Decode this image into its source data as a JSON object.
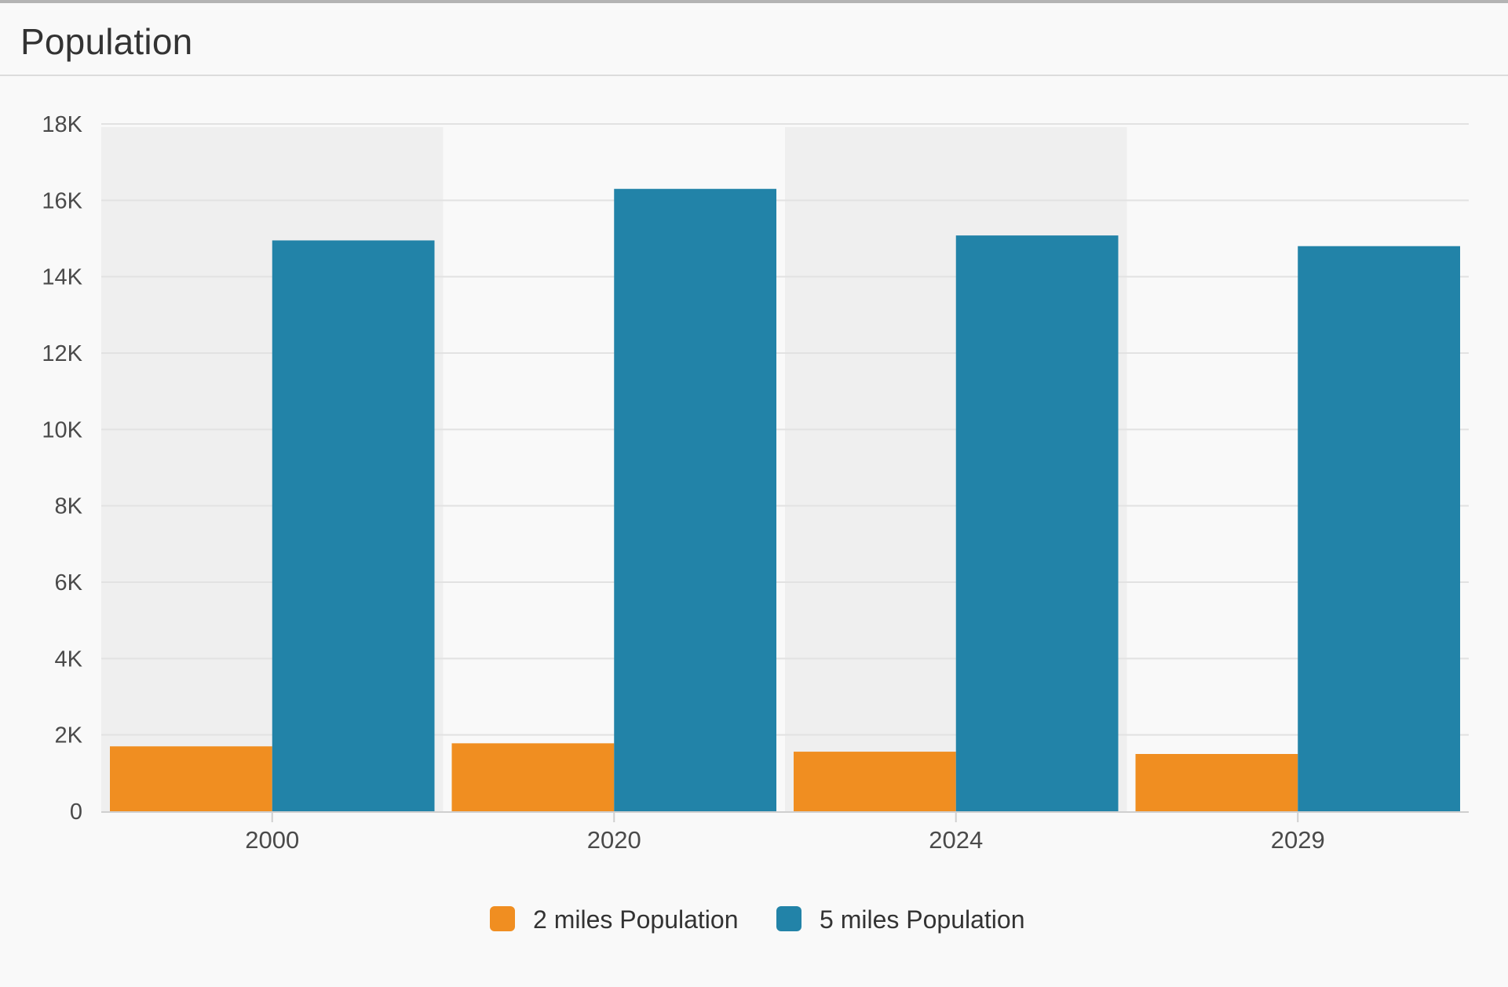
{
  "panel": {
    "title": "Population"
  },
  "chart_data": {
    "type": "bar",
    "categories": [
      "2000",
      "2020",
      "2024",
      "2029"
    ],
    "series": [
      {
        "name": "2 miles Population",
        "color": "#f08e21",
        "values": [
          1700,
          1780,
          1560,
          1500
        ]
      },
      {
        "name": "5 miles Population",
        "color": "#2283a8",
        "values": [
          14950,
          16300,
          15080,
          14800
        ]
      }
    ],
    "ylim": [
      0,
      18000
    ],
    "yticks": [
      0,
      2000,
      4000,
      6000,
      8000,
      10000,
      12000,
      14000,
      16000,
      18000
    ],
    "ytick_labels": [
      "0",
      "2K",
      "4K",
      "6K",
      "8K",
      "10K",
      "12K",
      "14K",
      "16K",
      "18K"
    ],
    "grid": true,
    "alternating_category_bands": true,
    "legend_position": "bottom-center",
    "colors": {
      "band": "#efefef",
      "grid": "#e2e2e2",
      "axis": "#cfcfcf",
      "text": "#4a4a4a"
    }
  }
}
